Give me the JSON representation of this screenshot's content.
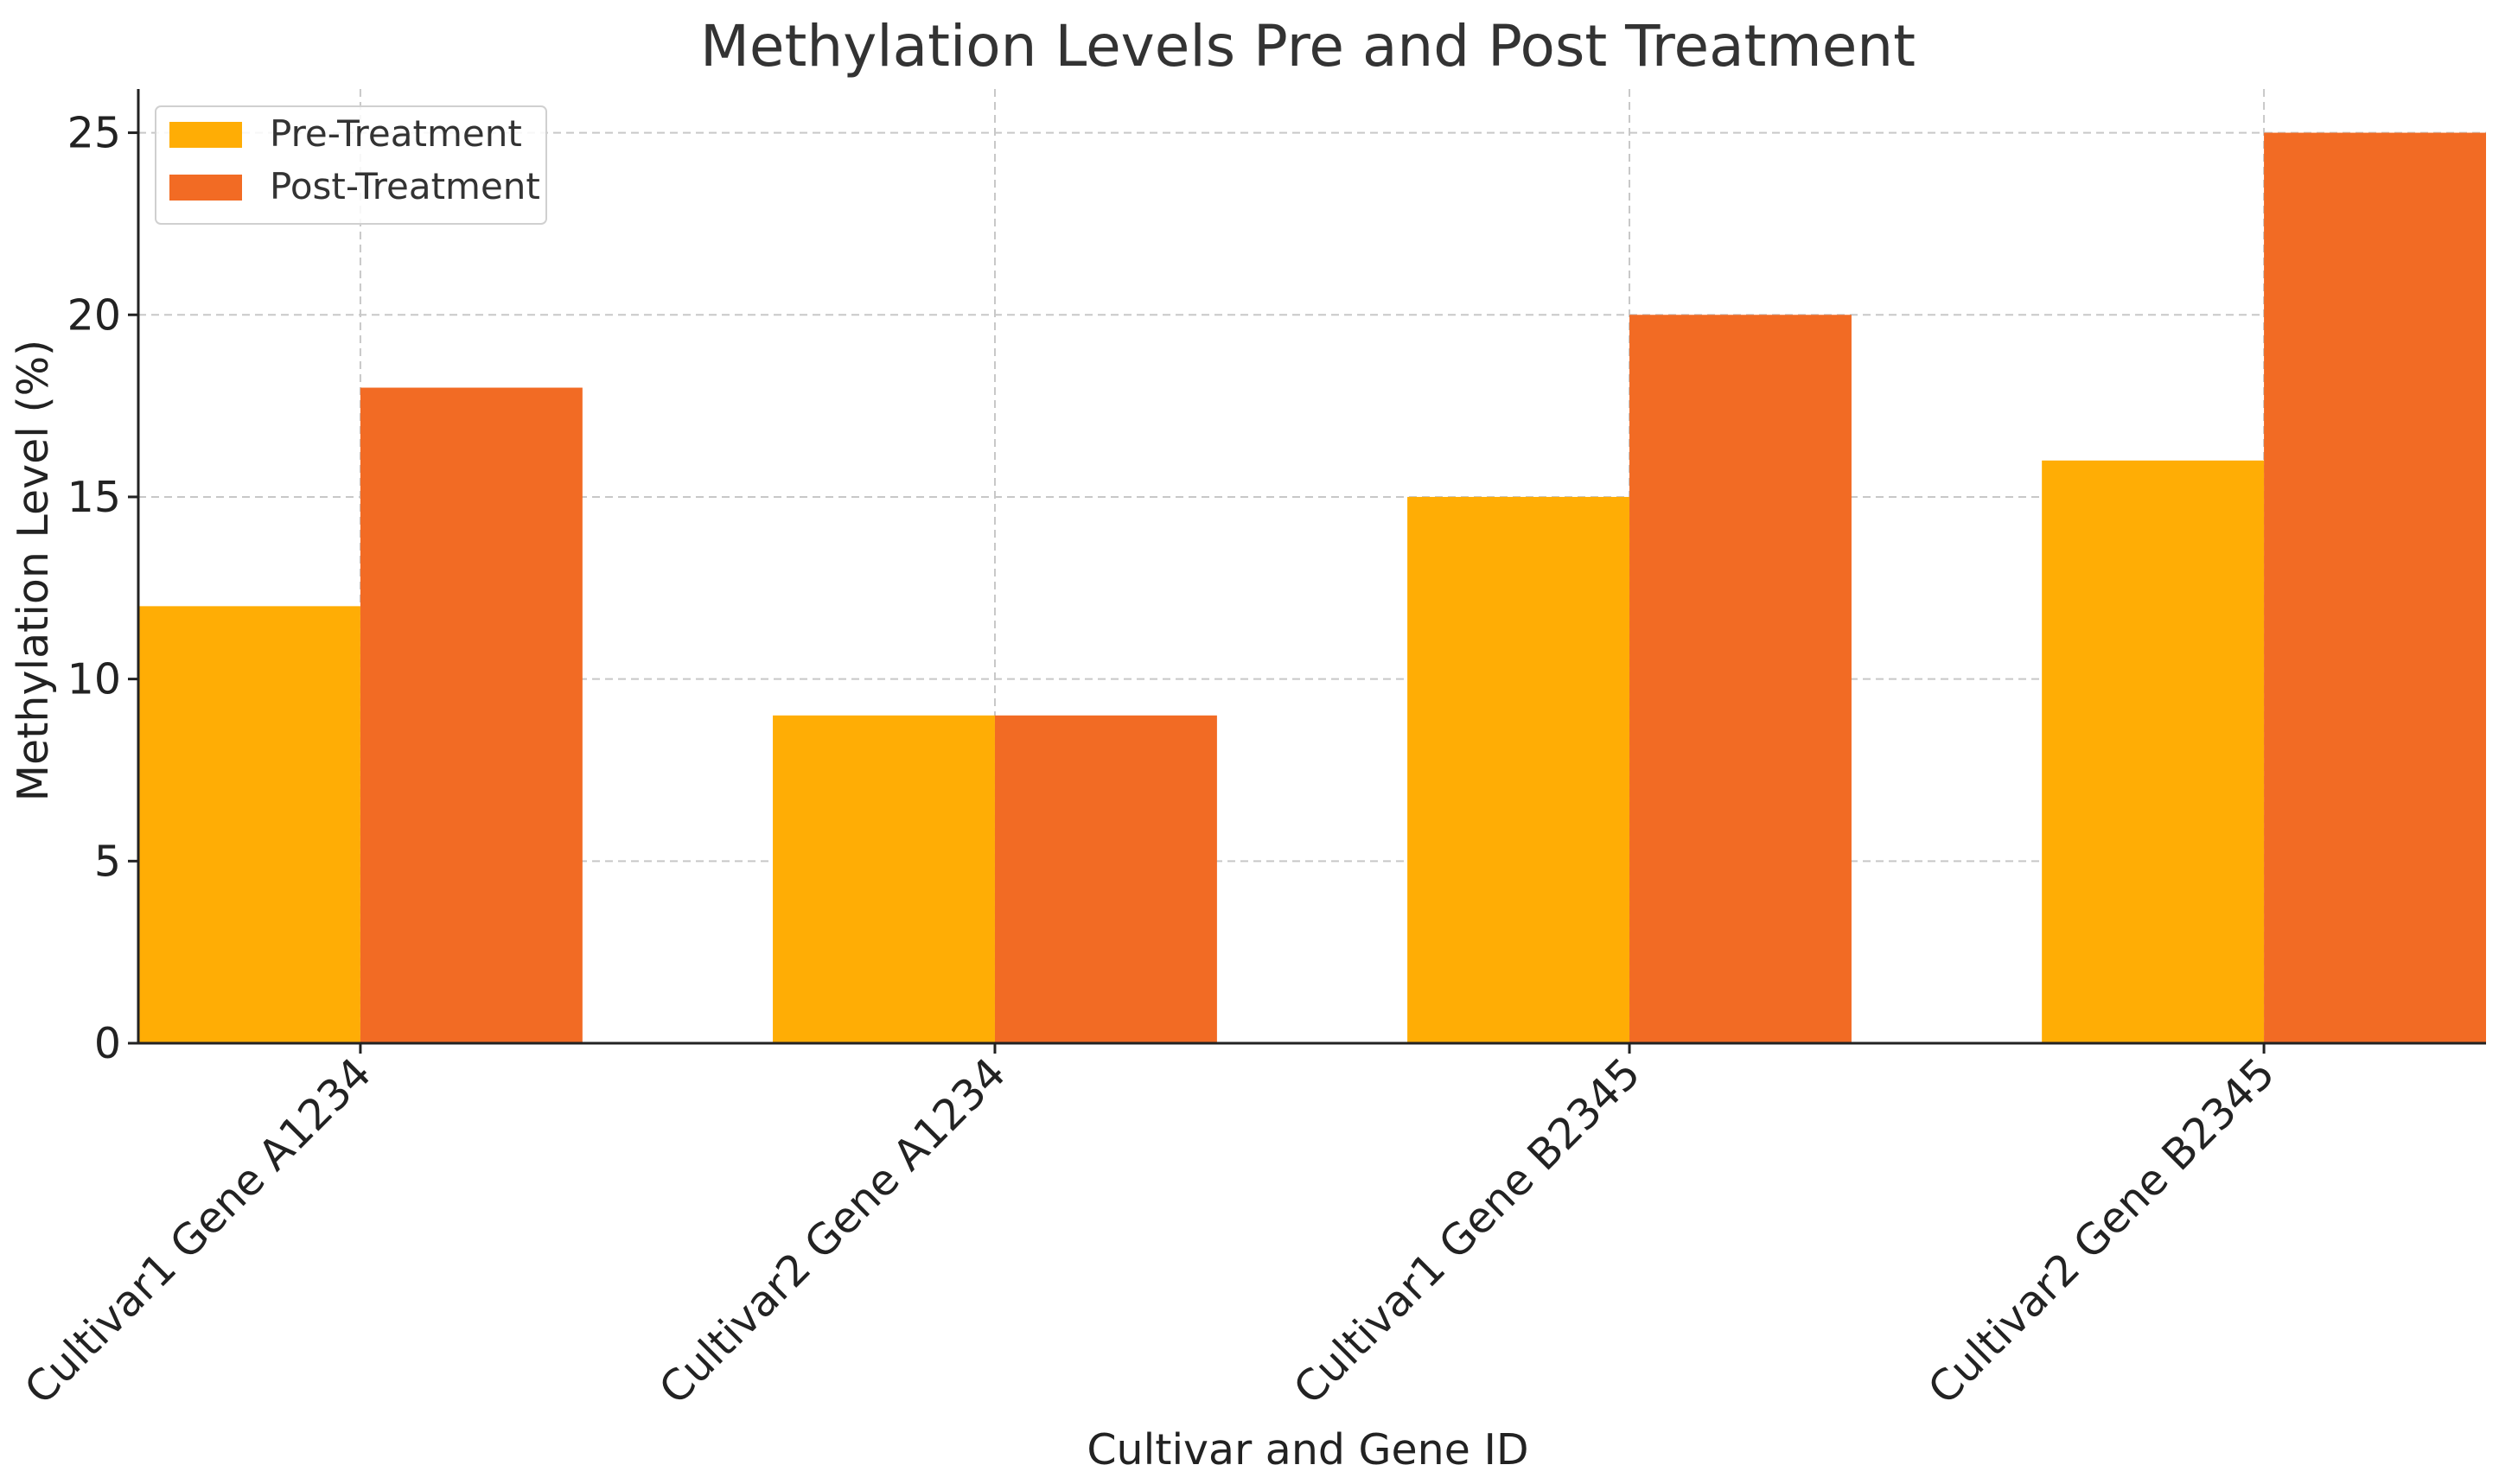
{
  "chart_data": {
    "type": "bar",
    "title": "Methylation Levels Pre and Post Treatment",
    "xlabel": "Cultivar and Gene ID",
    "ylabel": "Methylation Level (%)",
    "categories": [
      "Cultivar1 Gene A1234",
      "Cultivar2 Gene A1234",
      "Cultivar1 Gene B2345",
      "Cultivar2 Gene B2345"
    ],
    "series": [
      {
        "name": "Pre-Treatment",
        "values": [
          12,
          9,
          15,
          16
        ],
        "color": "#FFAD05"
      },
      {
        "name": "Post-Treatment",
        "values": [
          18,
          9,
          20,
          25
        ],
        "color": "#F26B24"
      }
    ],
    "ylim": [
      0,
      26.2
    ],
    "yticks": [
      0,
      5,
      10,
      15,
      20,
      25
    ],
    "grid": true,
    "legend_position": "top-left"
  }
}
